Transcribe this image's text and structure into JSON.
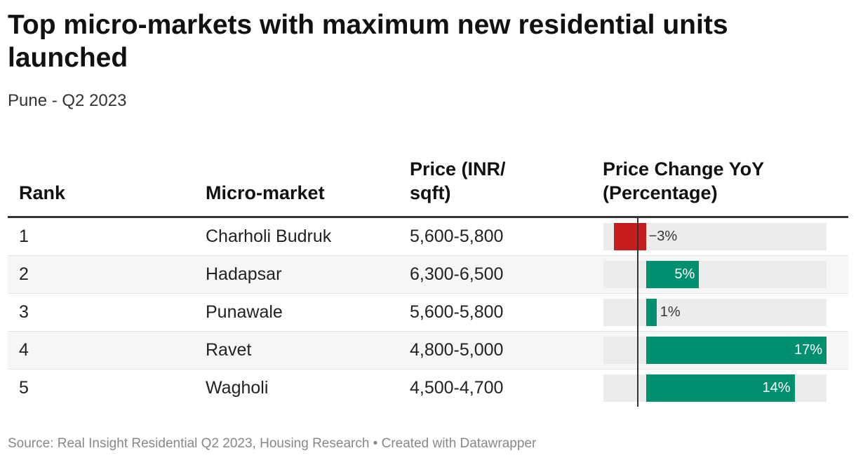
{
  "title": "Top micro-markets with maximum new residential units launched",
  "subtitle": "Pune - Q2 2023",
  "columns": {
    "rank": "Rank",
    "market": "Micro-market",
    "price": "Price (INR/ sqft)",
    "change": "Price Change YoY (Percentage)"
  },
  "footer": "Source: Real Insight Residential Q2 2023, Housing Research • Created with Datawrapper",
  "colors": {
    "positive": "#00906f",
    "negative": "#c71e1d",
    "track": "#ececec"
  },
  "chart_data": {
    "type": "table",
    "bar_column": "Price Change YoY (Percentage)",
    "xlim": [
      -4,
      17
    ],
    "rows": [
      {
        "rank": "1",
        "market": "Charholi Budruk",
        "price": "5,600-5,800",
        "change": -3,
        "change_label": "−3%"
      },
      {
        "rank": "2",
        "market": "Hadapsar",
        "price": "6,300-6,500",
        "change": 5,
        "change_label": "5%"
      },
      {
        "rank": "3",
        "market": "Punawale",
        "price": "5,600-5,800",
        "change": 1,
        "change_label": "1%"
      },
      {
        "rank": "4",
        "market": "Ravet",
        "price": "4,800-5,000",
        "change": 17,
        "change_label": "17%"
      },
      {
        "rank": "5",
        "market": "Wagholi",
        "price": "4,500-4,700",
        "change": 14,
        "change_label": "14%"
      }
    ]
  }
}
